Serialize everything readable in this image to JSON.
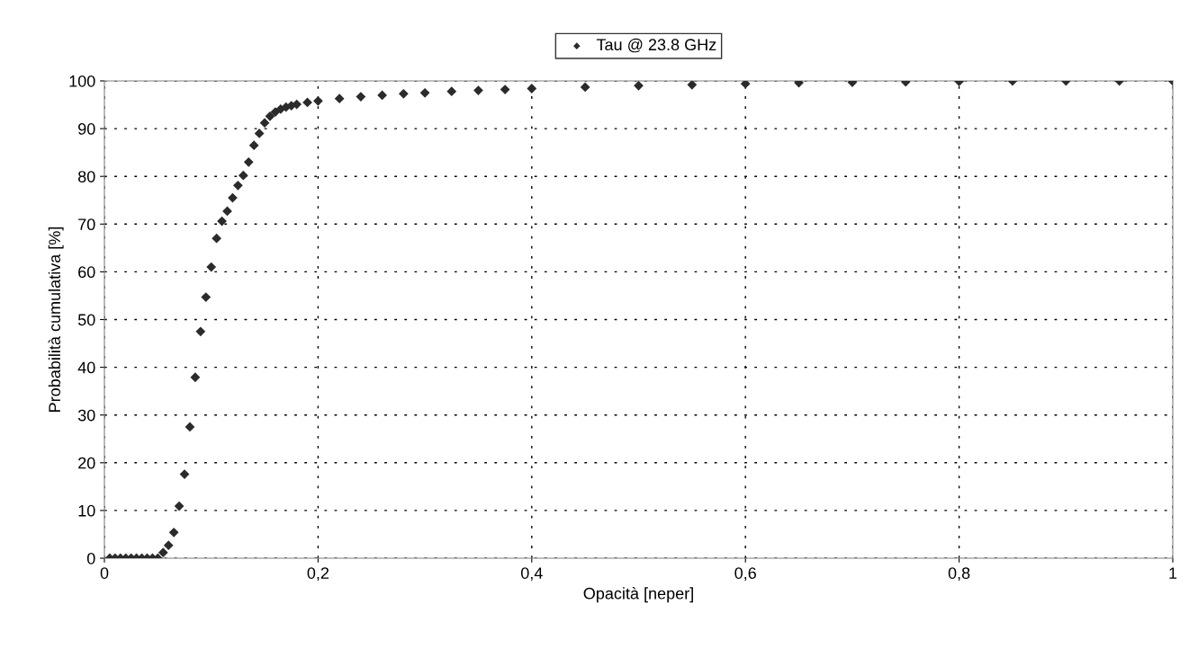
{
  "chart_data": {
    "type": "scatter",
    "xlabel": "Opacità [neper]",
    "ylabel": "Probabilità cumulativa [%]",
    "series": [
      {
        "name": "Tau @ 23.8 GHz",
        "color": "#2b2b2b",
        "x": [
          0.005,
          0.01,
          0.015,
          0.02,
          0.025,
          0.03,
          0.035,
          0.04,
          0.045,
          0.05,
          0.055,
          0.06,
          0.065,
          0.07,
          0.075,
          0.08,
          0.085,
          0.09,
          0.095,
          0.1,
          0.105,
          0.11,
          0.115,
          0.12,
          0.125,
          0.13,
          0.135,
          0.14,
          0.145,
          0.15,
          0.155,
          0.16,
          0.165,
          0.17,
          0.175,
          0.18,
          0.19,
          0.2,
          0.22,
          0.24,
          0.26,
          0.28,
          0.3,
          0.325,
          0.35,
          0.375,
          0.4,
          0.45,
          0.5,
          0.55,
          0.6,
          0.65,
          0.7,
          0.75,
          0.8,
          0.85,
          0.9,
          0.95,
          1.0
        ],
        "values": [
          0,
          0,
          0,
          0,
          0,
          0,
          0,
          0,
          0,
          0,
          1.2,
          2.7,
          5.4,
          10.9,
          17.6,
          27.5,
          37.9,
          47.5,
          54.7,
          61.0,
          67.0,
          70.6,
          72.7,
          75.5,
          78.1,
          80.2,
          83.0,
          86.5,
          89.0,
          91.2,
          92.6,
          93.5,
          94.1,
          94.5,
          94.8,
          95.1,
          95.5,
          95.8,
          96.3,
          96.7,
          97.0,
          97.3,
          97.5,
          97.8,
          98.0,
          98.2,
          98.4,
          98.7,
          99.0,
          99.2,
          99.4,
          99.6,
          99.7,
          99.8,
          99.9,
          100,
          100,
          100,
          100
        ]
      }
    ],
    "xlim": [
      0,
      1
    ],
    "ylim": [
      0,
      100
    ],
    "xticks": [
      0,
      {
        "value": 0.2,
        "label": "0,2"
      },
      {
        "value": 0.4,
        "label": "0,4"
      },
      {
        "value": 0.6,
        "label": "0,6"
      },
      {
        "value": 0.8,
        "label": "0,8"
      },
      1
    ],
    "yticks": [
      0,
      10,
      20,
      30,
      40,
      50,
      60,
      70,
      80,
      90,
      100
    ],
    "grid": true,
    "legend": "top",
    "marker": "diamond"
  }
}
